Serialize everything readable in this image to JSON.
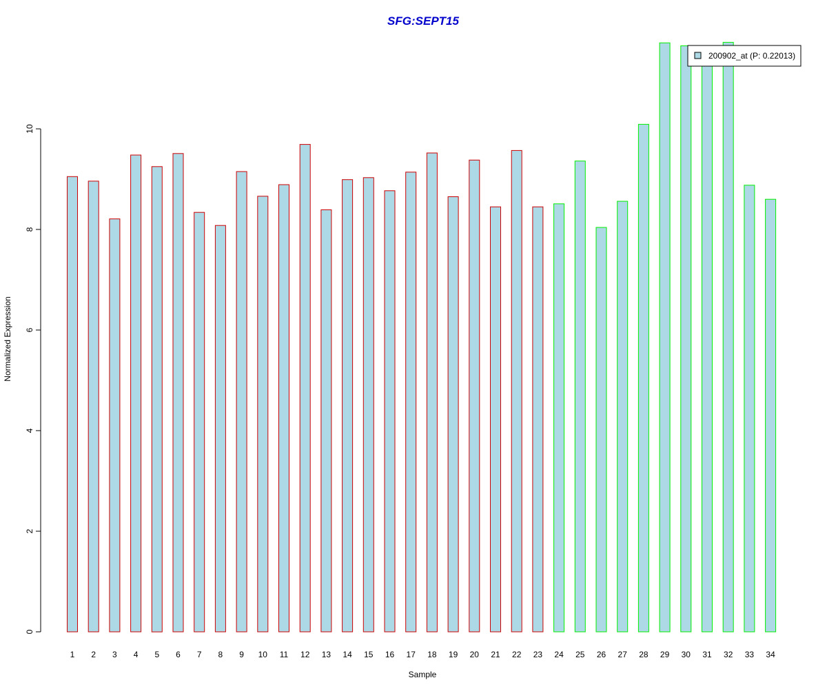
{
  "chart_data": {
    "type": "bar",
    "title": "SFG:SEPT15",
    "xlabel": "Sample",
    "ylabel": "Normalized Expression",
    "ylim": [
      0,
      11.6
    ],
    "yticks": [
      "0",
      "2",
      "4",
      "6",
      "8",
      "10"
    ],
    "categories": [
      "1",
      "2",
      "3",
      "4",
      "5",
      "6",
      "7",
      "8",
      "9",
      "10",
      "11",
      "12",
      "13",
      "14",
      "15",
      "16",
      "17",
      "18",
      "19",
      "20",
      "21",
      "22",
      "23",
      "24",
      "25",
      "26",
      "27",
      "28",
      "29",
      "30",
      "31",
      "32",
      "33",
      "34"
    ],
    "values": [
      9.05,
      8.96,
      8.21,
      9.48,
      9.25,
      9.51,
      8.34,
      8.08,
      9.15,
      8.66,
      8.89,
      9.69,
      8.39,
      8.99,
      9.03,
      8.77,
      9.14,
      9.52,
      8.65,
      9.38,
      8.45,
      9.57,
      8.45,
      8.51,
      9.36,
      8.04,
      8.56,
      10.09,
      11.71,
      11.65,
      11.3,
      11.72,
      8.88,
      8.6
    ],
    "groups": [
      "red",
      "red",
      "red",
      "red",
      "red",
      "red",
      "red",
      "red",
      "red",
      "red",
      "red",
      "red",
      "red",
      "red",
      "red",
      "red",
      "red",
      "red",
      "red",
      "red",
      "red",
      "red",
      "red",
      "green",
      "green",
      "green",
      "green",
      "green",
      "green",
      "green",
      "green",
      "green",
      "green",
      "green"
    ],
    "grid": false,
    "legend": {
      "placement": "top-right",
      "entries": [
        {
          "name": "200902_at (P: 0.22013)",
          "color": "#add8e6"
        }
      ]
    },
    "colors": {
      "fill": "#add8e6",
      "border_red": "#cc0000",
      "border_green": "#00ee00",
      "title": "#0000cc"
    }
  }
}
